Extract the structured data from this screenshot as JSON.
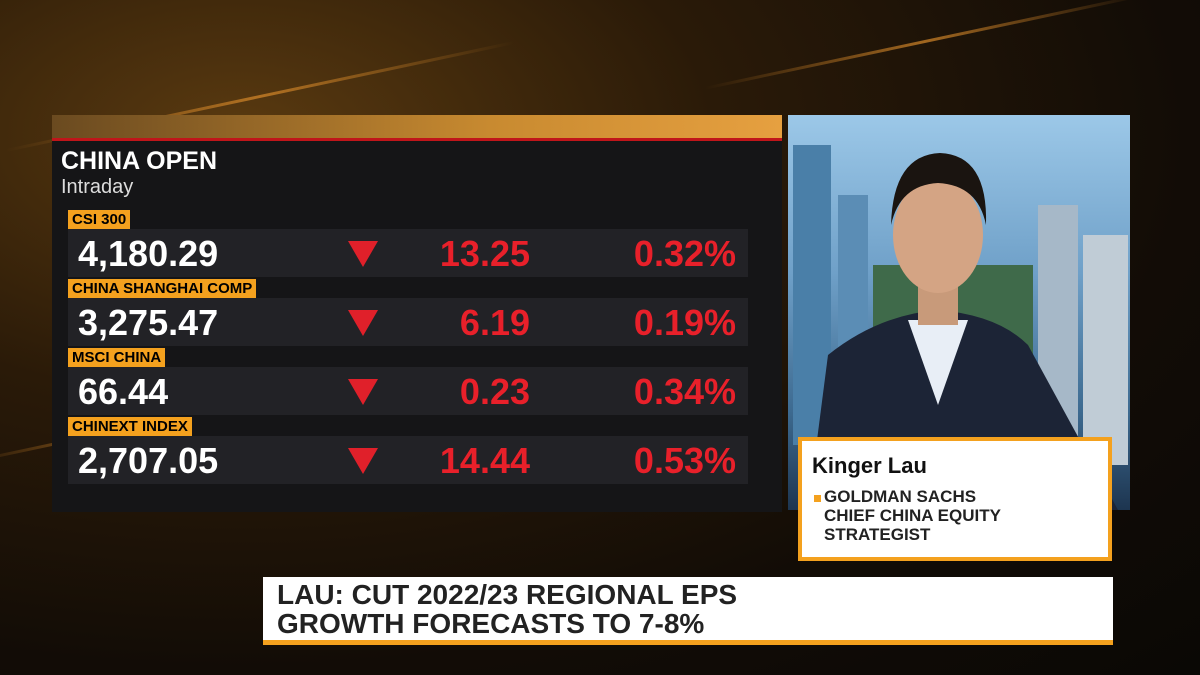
{
  "panel": {
    "title": "CHINA OPEN",
    "subtitle": "Intraday",
    "rows": [
      {
        "name": "CSI 300",
        "value": "4,180.29",
        "change": "13.25",
        "percent": "0.32%"
      },
      {
        "name": "CHINA SHANGHAI COMP",
        "value": "3,275.47",
        "change": "6.19",
        "percent": "0.19%"
      },
      {
        "name": "MSCI CHINA",
        "value": "66.44",
        "change": "0.23",
        "percent": "0.34%"
      },
      {
        "name": "CHINEXT INDEX",
        "value": "2,707.05",
        "change": "14.44",
        "percent": "0.53%"
      }
    ]
  },
  "guest": {
    "name": "Kinger Lau",
    "title_lines": [
      "GOLDMAN SACHS",
      "CHIEF CHINA EQUITY",
      "STRATEGIST"
    ]
  },
  "headline": {
    "lines": [
      "LAU: CUT 2022/23 REGIONAL EPS",
      "GROWTH FORECASTS TO 7-8%"
    ]
  }
}
